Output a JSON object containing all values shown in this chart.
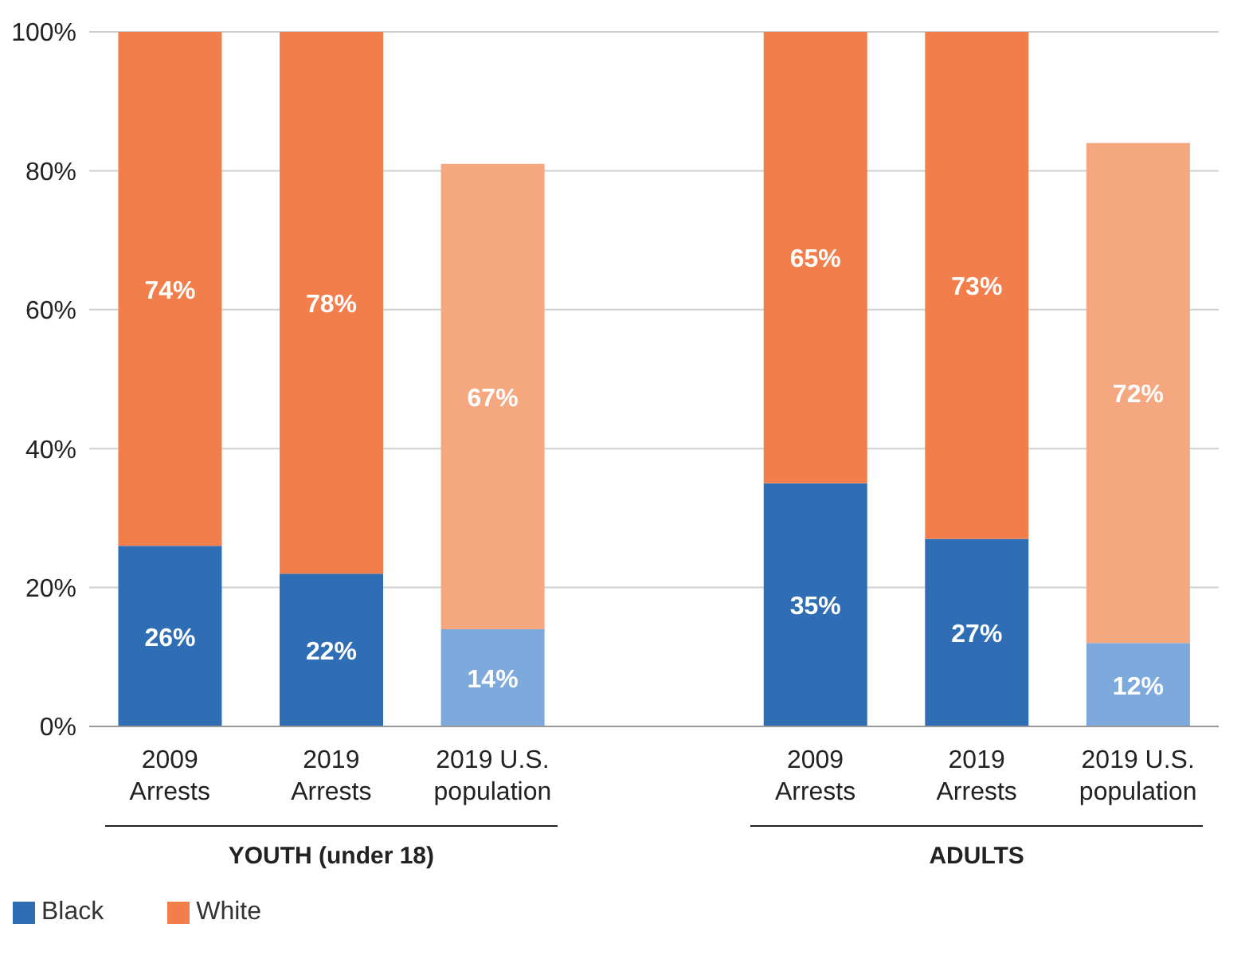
{
  "chart_data": {
    "type": "bar",
    "stacked": true,
    "categories": [
      "2009\nArrests",
      "2019\nArrests",
      "2019 U.S.\npopulation",
      null,
      "2009\nArrests",
      "2019\nArrests",
      "2019 U.S.\npopulation"
    ],
    "series": [
      {
        "name": "Black",
        "color": "#2f6db5",
        "colors": [
          "#2f6db5",
          "#2f6db5",
          "#7ea9dc",
          null,
          "#2f6db5",
          "#2f6db5",
          "#7ea9dc"
        ],
        "values": [
          26,
          22,
          14,
          null,
          35,
          27,
          12
        ],
        "value_labels": [
          "26%",
          "22%",
          "14%",
          null,
          "35%",
          "27%",
          "12%"
        ]
      },
      {
        "name": "White",
        "color": "#f27f4b",
        "colors": [
          "#f27f4b",
          "#f27f4b",
          "#f5a880",
          null,
          "#f27f4b",
          "#f27f4b",
          "#f5a880"
        ],
        "values": [
          74,
          78,
          67,
          null,
          65,
          73,
          72
        ],
        "value_labels": [
          "74%",
          "78%",
          "67%",
          null,
          "65%",
          "73%",
          "72%"
        ]
      }
    ],
    "ylim": [
      0,
      100
    ],
    "yticks": [
      {
        "value": 0,
        "label": "0%"
      },
      {
        "value": 20,
        "label": "20%"
      },
      {
        "value": 40,
        "label": "40%"
      },
      {
        "value": 60,
        "label": "60%"
      },
      {
        "value": 80,
        "label": "80%"
      },
      {
        "value": 100,
        "label": "100%"
      }
    ],
    "grid": "y",
    "legend": "bottom left",
    "annotations": [
      "YOUTH (under 18)",
      "ADULTS"
    ]
  }
}
